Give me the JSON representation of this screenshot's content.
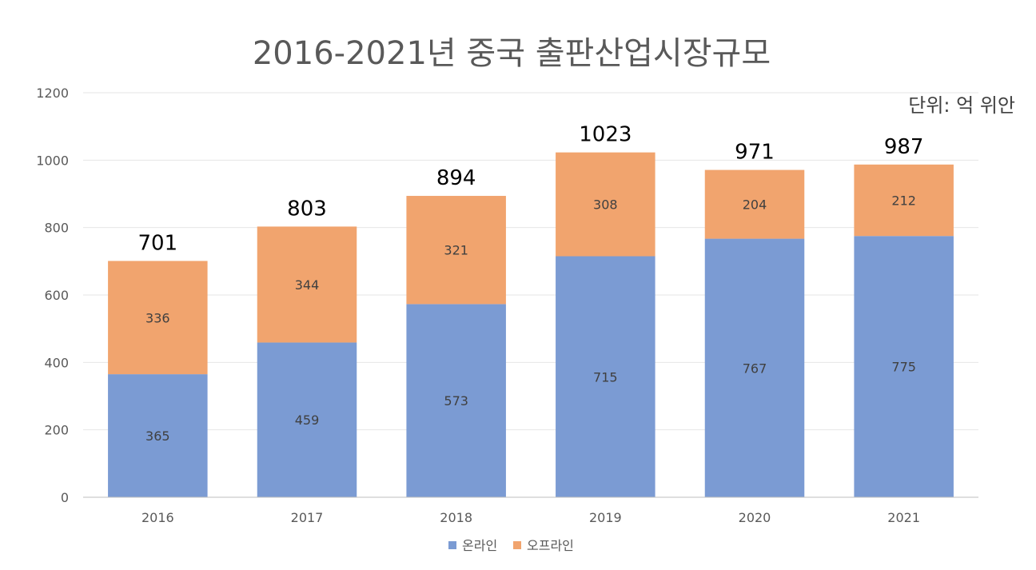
{
  "chart_data": {
    "type": "bar",
    "stacked": true,
    "title": "2016-2021년 중국 출판산업시장규모",
    "unit_label": "단위: 억 위안",
    "categories": [
      "2016",
      "2017",
      "2018",
      "2019",
      "2020",
      "2021"
    ],
    "series": [
      {
        "name": "온라인",
        "values": [
          365,
          459,
          573,
          715,
          767,
          775
        ],
        "color": "#7b9bd3"
      },
      {
        "name": "오프라인",
        "values": [
          336,
          344,
          321,
          308,
          204,
          212
        ],
        "color": "#f1a46e"
      }
    ],
    "totals": [
      701,
      803,
      894,
      1023,
      971,
      987
    ],
    "ylim": [
      0,
      1200
    ],
    "yticks": [
      0,
      200,
      400,
      600,
      800,
      1000,
      1200
    ],
    "grid": true,
    "legend": "bottom-center"
  }
}
